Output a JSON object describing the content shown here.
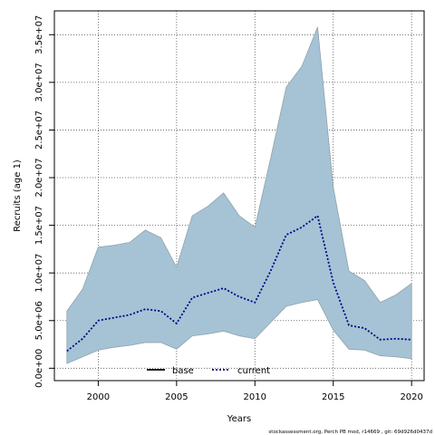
{
  "chart_data": {
    "type": "area",
    "xlabel": "Years",
    "ylabel": "Recruits (age 1)",
    "xlim": [
      1997.2,
      2020.8
    ],
    "ylim": [
      -1300000,
      37500000
    ],
    "x_ticks": [
      2000,
      2005,
      2010,
      2015,
      2020
    ],
    "x_tick_labels": [
      "2000",
      "2005",
      "2010",
      "2015",
      "2020"
    ],
    "y_ticks": [
      0,
      5000000,
      10000000,
      15000000,
      20000000,
      25000000,
      30000000,
      35000000
    ],
    "y_tick_labels": [
      "0.0e+00",
      "5.0e+06",
      "1.0e+07",
      "1.5e+07",
      "2.0e+07",
      "2.5e+07",
      "3.0e+07",
      "3.5e+07"
    ],
    "grid": true,
    "x": [
      1998,
      1999,
      2000,
      2001,
      2002,
      2003,
      2004,
      2005,
      2006,
      2007,
      2008,
      2009,
      2010,
      2011,
      2012,
      2013,
      2014,
      2015,
      2016,
      2017,
      2018,
      2019,
      2020
    ],
    "band": {
      "lower": [
        500000,
        1200000,
        1900000,
        2200000,
        2400000,
        2700000,
        2700000,
        2000000,
        3400000,
        3600000,
        3900000,
        3400000,
        3100000,
        4800000,
        6500000,
        6900000,
        7200000,
        4000000,
        2000000,
        1900000,
        1300000,
        1200000,
        1000000
      ],
      "upper": [
        6000000,
        8300000,
        12700000,
        12900000,
        13200000,
        14500000,
        13700000,
        10600000,
        16000000,
        17000000,
        18400000,
        16000000,
        14800000,
        22000000,
        29500000,
        31700000,
        35800000,
        19000000,
        10200000,
        9200000,
        6900000,
        7700000,
        8900000
      ],
      "color": "#a5c3d4",
      "edge_color": "#8fa3ae"
    },
    "series": [
      {
        "name": "base",
        "values": [
          null,
          null,
          null,
          null,
          null,
          null,
          null,
          null,
          null,
          null,
          null,
          null,
          null,
          null,
          null,
          null,
          null,
          null,
          null,
          null,
          null,
          null,
          null
        ],
        "color": "#000000",
        "style": "solid"
      },
      {
        "name": "current",
        "values": [
          1800000,
          3100000,
          5000000,
          5300000,
          5600000,
          6200000,
          6000000,
          4700000,
          7400000,
          7900000,
          8400000,
          7500000,
          6900000,
          10200000,
          14000000,
          14800000,
          16000000,
          9000000,
          4500000,
          4200000,
          3000000,
          3100000,
          3000000
        ],
        "color": "#00008b",
        "style": "dotted"
      }
    ],
    "legend_position": "bottom-center"
  },
  "footer": "stockassessment.org, Perch PB mod, r14669 , git: 69d926d0437d"
}
